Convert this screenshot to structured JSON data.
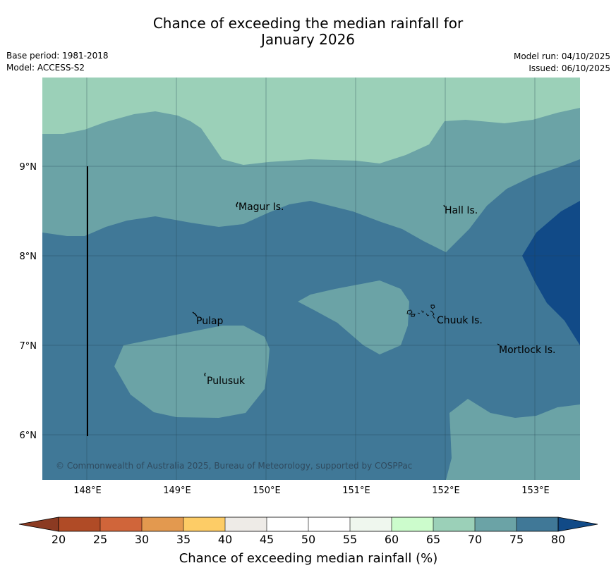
{
  "title_line1": "Chance of exceeding the median rainfall for",
  "title_line2": "January 2026",
  "meta": {
    "base_period": "Base period: 1981-2018",
    "model": "Model: ACCESS-S2",
    "model_run": "Model run: 04/10/2025",
    "issued": "Issued: 06/10/2025"
  },
  "map": {
    "lat_ticks": [
      "9°N",
      "8°N",
      "7°N",
      "6°N"
    ],
    "lon_ticks": [
      "148°E",
      "149°E",
      "150°E",
      "151°E",
      "152°E",
      "153°E"
    ],
    "places": [
      "Magur Is.",
      "Hall Is.",
      "Pulap",
      "Chuuk Is.",
      "Mortlock Is.",
      "Pulusuk"
    ],
    "copyright": "© Commonwealth of Australia 2025, Bureau of Meteorology, supported by COSPPac",
    "colors": {
      "c65_70": "#9bd0b8",
      "c70_75": "#6ba3a6",
      "c75_80": "#407897",
      "c80_plus": "#114a87"
    }
  },
  "colorbar": {
    "ticks": [
      "20",
      "25",
      "30",
      "35",
      "40",
      "45",
      "50",
      "55",
      "60",
      "65",
      "70",
      "75",
      "80"
    ],
    "colors": [
      "#8b3a22",
      "#b04b26",
      "#d0653a",
      "#e3994f",
      "#fdcc66",
      "#eeebe7",
      "#ffffff",
      "#ffffff",
      "#eff7ee",
      "#ccfccc",
      "#9bd0b8",
      "#6ba3a6",
      "#407897",
      "#114a87"
    ],
    "label": "Chance of exceeding median rainfall (%)"
  }
}
